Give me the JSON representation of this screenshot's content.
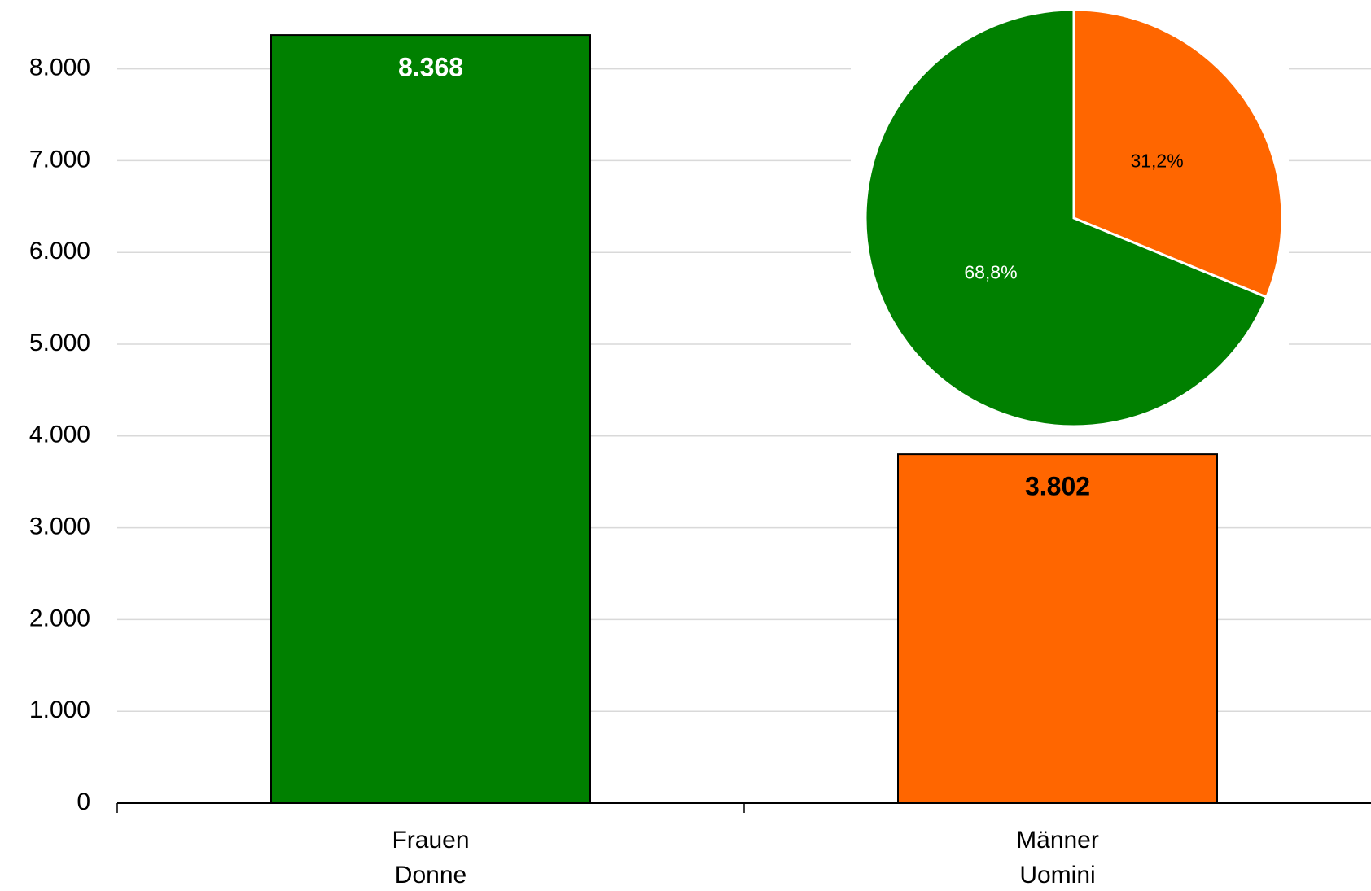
{
  "chart_data": [
    {
      "type": "bar",
      "categories": [
        [
          "Frauen",
          "Donne"
        ],
        [
          "Männer",
          "Uomini"
        ]
      ],
      "values": [
        8368,
        3802
      ],
      "value_labels": [
        "8.368",
        "3.802"
      ],
      "colors": [
        "#008000",
        "#ff6600"
      ],
      "label_colors": [
        "#ffffff",
        "#000000"
      ],
      "ylim": [
        0,
        8750
      ],
      "yticks": [
        0,
        {
          "value": 1000,
          "label": "1.000"
        },
        {
          "value": 2000,
          "label": "2.000"
        },
        {
          "value": 3000,
          "label": "3.000"
        },
        {
          "value": 4000,
          "label": "4.000"
        },
        {
          "value": 5000,
          "label": "5.000"
        },
        {
          "value": 6000,
          "label": "6.000"
        },
        {
          "value": 7000,
          "label": "7.000"
        },
        {
          "value": 8000,
          "label": "8.000"
        }
      ],
      "grid": true
    },
    {
      "type": "pie",
      "values": [
        31.2,
        68.8
      ],
      "value_labels": [
        "31,2%",
        "68,8%"
      ],
      "colors": [
        "#ff6600",
        "#008000"
      ],
      "label_colors": [
        "#000000",
        "#ffffff"
      ]
    }
  ]
}
